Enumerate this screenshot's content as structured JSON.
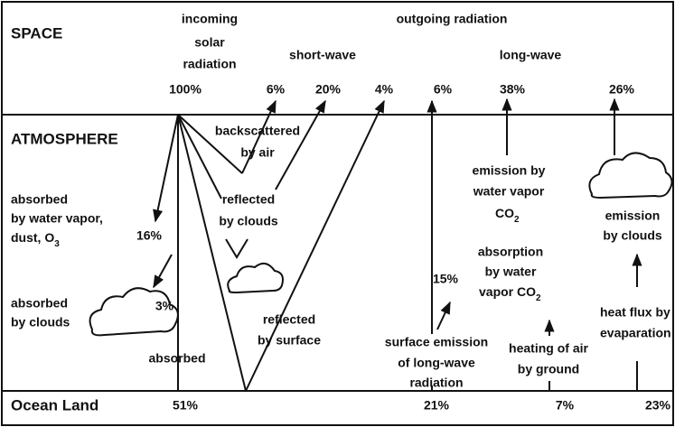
{
  "zones": {
    "space": "SPACE",
    "atmosphere": "ATMOSPHERE",
    "ground": "Ocean Land"
  },
  "incoming": {
    "lines": [
      "incoming",
      "solar",
      "radiation"
    ],
    "total": "100%"
  },
  "outgoing": {
    "title": "outgoing radiation",
    "short_wave": "short-wave",
    "long_wave": "long-wave"
  },
  "space_values": [
    "6%",
    "20%",
    "4%",
    "6%",
    "38%",
    "26%"
  ],
  "ground_values": [
    "51%",
    "21%",
    "7%",
    "23%"
  ],
  "labels": {
    "backscattered": [
      "backscattered",
      "by air"
    ],
    "reflected_clouds": [
      "reflected",
      "by clouds"
    ],
    "emission_vapor": {
      "lines": [
        "emission by",
        "water vapor",
        "CO"
      ],
      "sub": "2"
    },
    "emission_clouds": [
      "emission",
      "by clouds"
    ],
    "absorbed_vapor": {
      "lines": [
        "absorbed",
        "by water vapor,",
        "dust, O"
      ],
      "sub": "3"
    },
    "absorbed_vapor_value": "16%",
    "absorbed_clouds": [
      "absorbed",
      "by clouds"
    ],
    "absorbed_clouds_value": "3%",
    "reflected_surface": [
      "reflected",
      "by surface"
    ],
    "absorption_value": "15%",
    "absorption_vapor": {
      "lines": [
        "absorption",
        "by water",
        "vapor CO"
      ],
      "sub": "2"
    },
    "heat_flux": [
      "heat flux by",
      "evaparation"
    ],
    "surface_emission": [
      "surface emission",
      "of long-wave",
      "radiation"
    ],
    "heating": [
      "heating of air",
      "by ground"
    ],
    "absorbed": "absorbed"
  }
}
